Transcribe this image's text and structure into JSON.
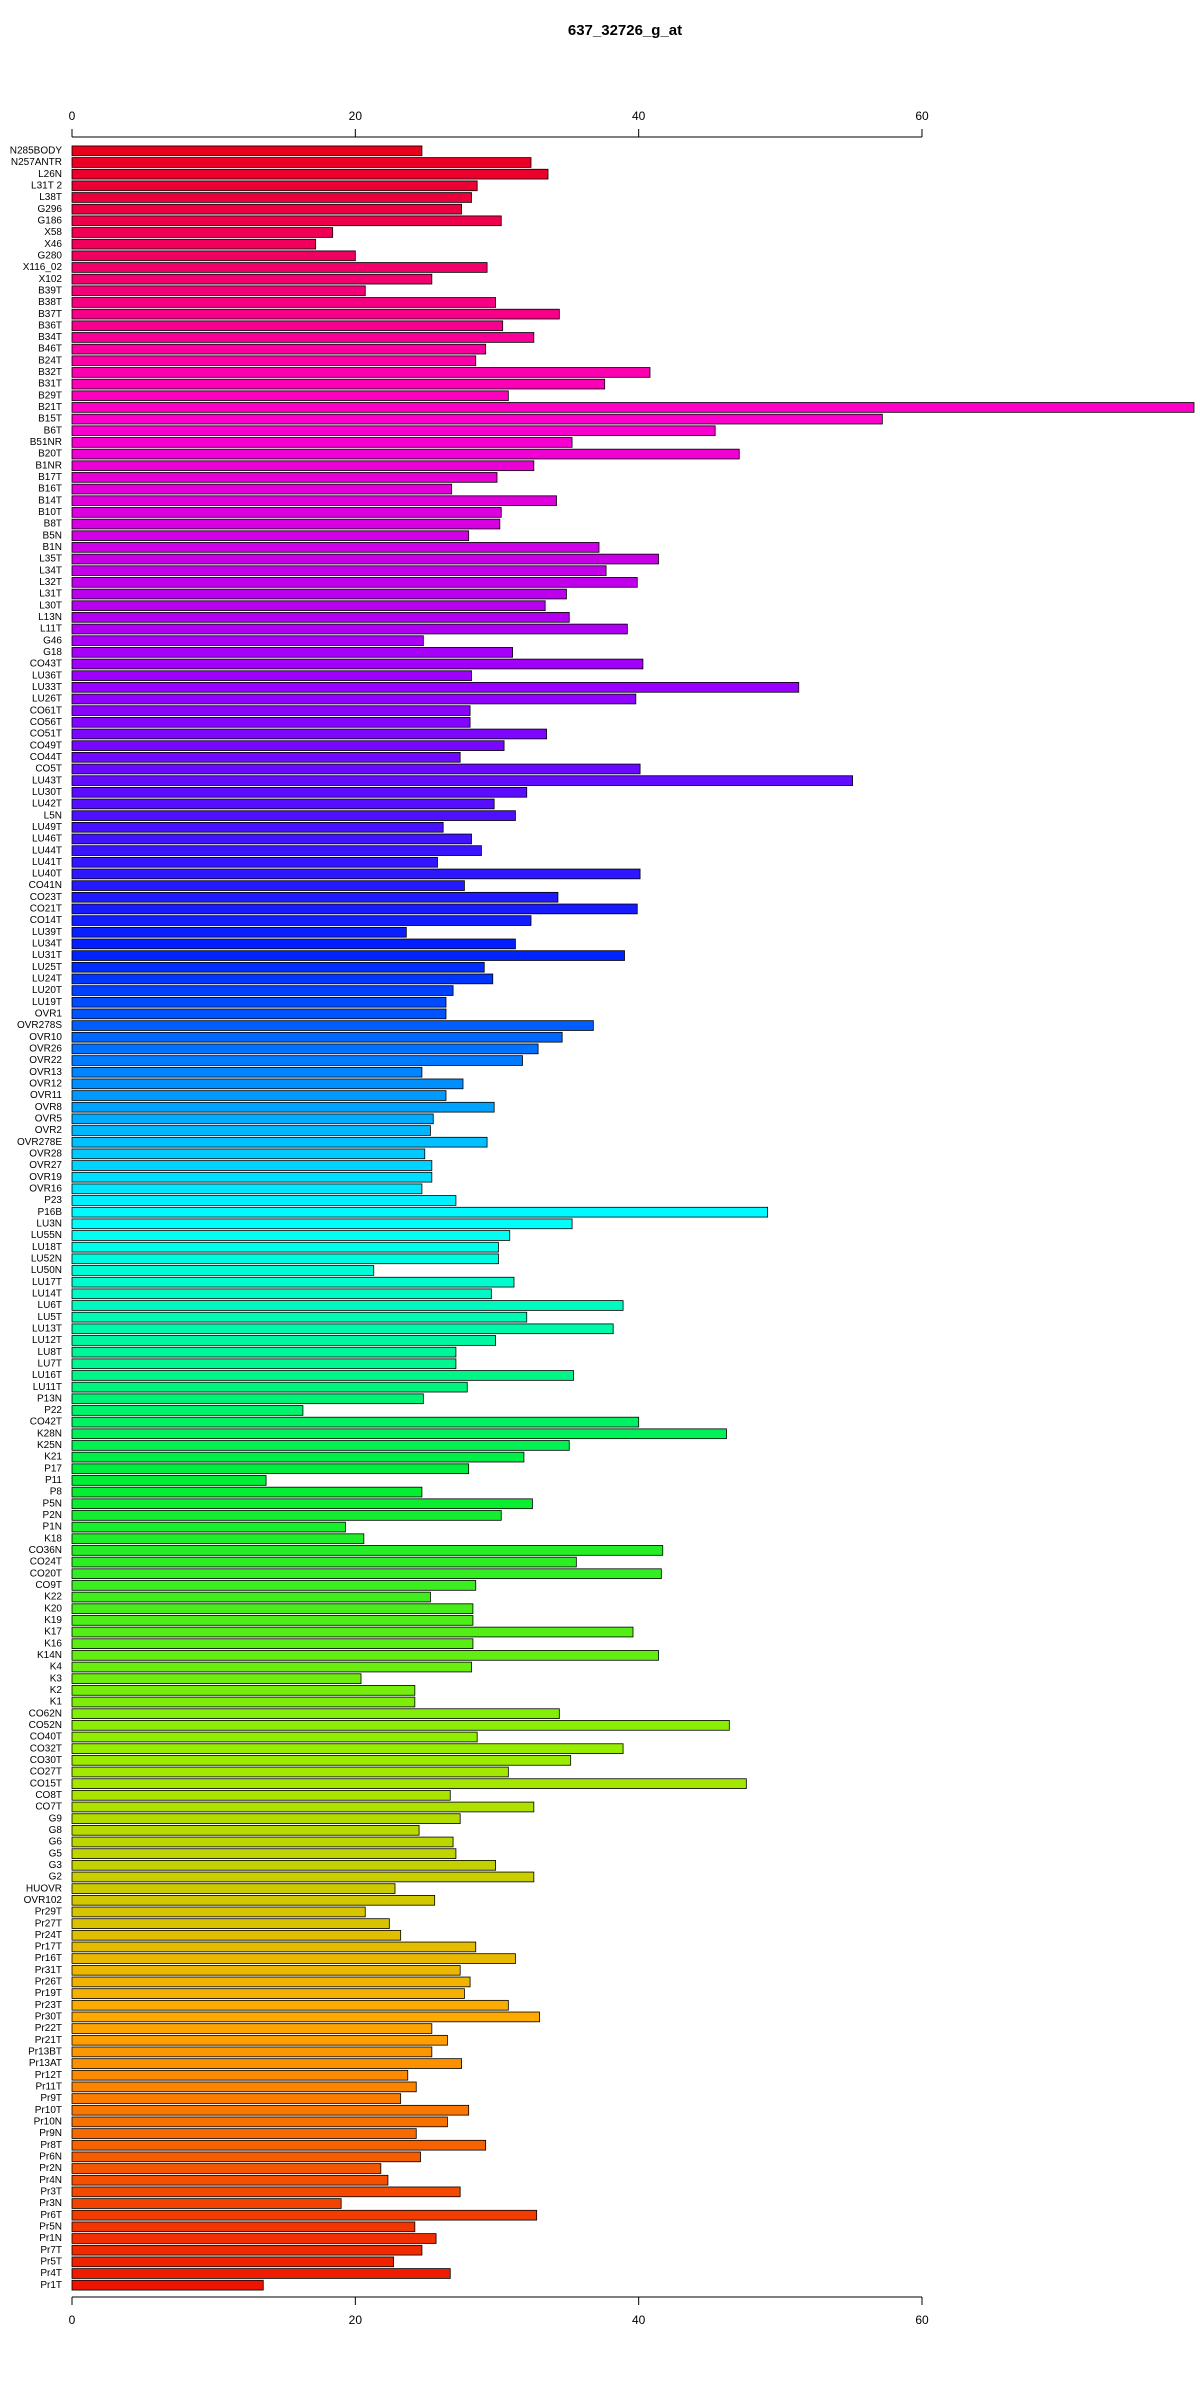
{
  "chart_data": {
    "type": "barh",
    "title": "637_32726_g_at",
    "categories": [
      "N285BODY",
      "N257ANTR",
      "L26N",
      "L31T 2",
      "L38T",
      "G296",
      "G186",
      "X58",
      "X46",
      "G280",
      "X116_02",
      "X102",
      "B39T",
      "B38T",
      "B37T",
      "B36T",
      "B34T",
      "B46T",
      "B24T",
      "B32T",
      "B31T",
      "B29T",
      "B21T",
      "B15T",
      "B6T",
      "B51NR",
      "B20T",
      "B1NR",
      "B17T",
      "B16T",
      "B14T",
      "B10T",
      "B8T",
      "B5N",
      "B1N",
      "L35T",
      "L34T",
      "L32T",
      "L31T",
      "L30T",
      "L13N",
      "L11T",
      "G46",
      "G18",
      "CO43T",
      "LU36T",
      "LU33T",
      "LU26T",
      "CO61T",
      "CO56T",
      "CO51T",
      "CO49T",
      "CO44T",
      "CO5T",
      "LU43T",
      "LU30T",
      "LU42T",
      "L5N",
      "LU49T",
      "LU46T",
      "LU44T",
      "LU41T",
      "LU40T",
      "CO41N",
      "CO23T",
      "CO21T",
      "CO14T",
      "LU39T",
      "LU34T",
      "LU31T",
      "LU25T",
      "LU24T",
      "LU20T",
      "LU19T",
      "OVR1",
      "OVR278S",
      "OVR10",
      "OVR26",
      "OVR22",
      "OVR13",
      "OVR12",
      "OVR11",
      "OVR8",
      "OVR5",
      "OVR2",
      "OVR278E",
      "OVR28",
      "OVR27",
      "OVR19",
      "OVR16",
      "P23",
      "P16B",
      "LU3N",
      "LU55N",
      "LU18T",
      "LU52N",
      "LU50N",
      "LU17T",
      "LU14T",
      "LU6T",
      "LU5T",
      "LU13T",
      "LU12T",
      "LU8T",
      "LU7T",
      "LU16T",
      "LU11T",
      "P13N",
      "P22",
      "CO42T",
      "K28N",
      "K25N",
      "K21",
      "P17",
      "P11",
      "P8",
      "P5N",
      "P2N",
      "P1N",
      "K18",
      "CO36N",
      "CO24T",
      "CO20T",
      "CO9T",
      "K22",
      "K20",
      "K19",
      "K17",
      "K16",
      "K14N",
      "K4",
      "K3",
      "K2",
      "K1",
      "CO62N",
      "CO52N",
      "CO40T",
      "CO32T",
      "CO30T",
      "CO27T",
      "CO15T",
      "CO8T",
      "CO7T",
      "G9",
      "G8",
      "G6",
      "G5",
      "G3",
      "G2",
      "HUOVR",
      "OVR102",
      "Pr29T",
      "Pr27T",
      "Pr24T",
      "Pr17T",
      "Pr16T",
      "Pr31T",
      "Pr26T",
      "Pr19T",
      "Pr23T",
      "Pr30T",
      "Pr22T",
      "Pr21T",
      "Pr13BT",
      "Pr13AT",
      "Pr12T",
      "Pr11T",
      "Pr9T",
      "Pr10T",
      "Pr10N",
      "Pr9N",
      "Pr8T",
      "Pr6N",
      "Pr2N",
      "Pr4N",
      "Pr3T",
      "Pr3N",
      "Pr6T",
      "Pr5N",
      "Pr1N",
      "Pr7T",
      "Pr5T",
      "Pr4T",
      "Pr1T"
    ],
    "values": [
      24.7,
      32.4,
      33.6,
      28.6,
      28.2,
      27.5,
      30.3,
      18.4,
      17.2,
      20.0,
      29.3,
      25.4,
      20.7,
      29.9,
      34.4,
      30.4,
      32.6,
      29.2,
      28.5,
      40.8,
      37.6,
      30.8,
      79.2,
      57.2,
      45.4,
      35.3,
      47.1,
      32.6,
      30.0,
      26.8,
      34.2,
      30.3,
      30.2,
      28.0,
      37.2,
      41.4,
      37.7,
      39.9,
      34.9,
      33.4,
      35.1,
      39.2,
      24.8,
      31.1,
      40.3,
      28.2,
      51.3,
      39.8,
      28.1,
      28.1,
      33.5,
      30.5,
      27.4,
      40.1,
      55.1,
      32.1,
      29.8,
      31.3,
      26.2,
      28.2,
      28.9,
      25.8,
      40.1,
      27.7,
      34.3,
      39.9,
      32.4,
      23.6,
      31.3,
      39.0,
      29.1,
      29.7,
      26.9,
      26.4,
      26.4,
      36.8,
      34.6,
      32.9,
      31.8,
      24.7,
      27.6,
      26.4,
      29.8,
      25.5,
      25.3,
      29.3,
      24.9,
      25.4,
      25.4,
      24.7,
      27.1,
      49.1,
      35.3,
      30.9,
      30.1,
      30.1,
      21.3,
      31.2,
      29.6,
      38.9,
      32.1,
      38.2,
      29.9,
      27.1,
      27.1,
      35.4,
      27.9,
      24.8,
      16.3,
      40.0,
      46.2,
      35.1,
      31.9,
      28.0,
      13.7,
      24.7,
      32.5,
      30.3,
      19.3,
      20.6,
      41.7,
      35.6,
      41.6,
      28.5,
      25.3,
      28.3,
      28.3,
      39.6,
      28.3,
      41.4,
      28.2,
      20.4,
      24.2,
      24.2,
      34.4,
      46.4,
      28.6,
      38.9,
      35.2,
      30.8,
      47.6,
      26.7,
      32.6,
      27.4,
      24.5,
      26.9,
      27.1,
      29.9,
      32.6,
      22.8,
      25.6,
      20.7,
      22.4,
      23.2,
      28.5,
      31.3,
      27.4,
      28.1,
      27.7,
      30.8,
      33.0,
      25.4,
      26.5,
      25.4,
      27.5,
      23.7,
      24.3,
      23.2,
      28.0,
      26.5,
      24.3,
      29.2,
      24.6,
      21.8,
      22.3,
      27.4,
      19.0,
      32.8,
      24.2,
      25.7,
      24.7,
      22.7,
      26.7,
      13.5
    ],
    "palette": [
      "#e8001c",
      "#ff00cc",
      "#9a00ff",
      "#0020ff",
      "#00ffff",
      "#00ee33",
      "#99ee00",
      "#ffaa00",
      "#ee1500"
    ],
    "xlim": [
      0,
      79.2
    ],
    "xticks": [
      0,
      20,
      40,
      60
    ]
  }
}
